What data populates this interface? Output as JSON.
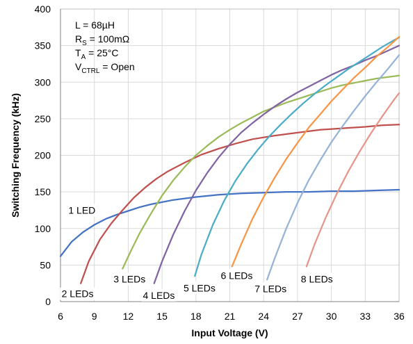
{
  "chart_data": {
    "type": "line",
    "title": "",
    "xlabel": "Input Voltage (V)",
    "ylabel": "Switching Frequency (kHz)",
    "xlim": [
      6,
      36
    ],
    "ylim": [
      0,
      400
    ],
    "xticks": [
      6,
      9,
      12,
      15,
      18,
      21,
      24,
      27,
      30,
      33,
      36
    ],
    "yticks": [
      0,
      50,
      100,
      150,
      200,
      250,
      300,
      350,
      400
    ],
    "grid": true,
    "legend": "none",
    "annotations": [
      {
        "main": "L = 68µH",
        "sub": "",
        "tail": ""
      },
      {
        "main": "R",
        "sub": "S",
        "tail": " = 100mΩ"
      },
      {
        "main": "T",
        "sub": "A",
        "tail": " = 25°C"
      },
      {
        "main": "V",
        "sub": "CTRL",
        "tail": " = Open"
      }
    ],
    "series": [
      {
        "name": "1 LED",
        "color": "#4472C4",
        "x": [
          6,
          7,
          8,
          9,
          10,
          11,
          12,
          13,
          14,
          15,
          16,
          17,
          18,
          20,
          22,
          24,
          26,
          28,
          30,
          32,
          34,
          36
        ],
        "y": [
          62,
          82,
          95,
          105,
          113,
          119,
          124,
          129,
          133,
          136,
          139,
          141,
          143,
          146,
          148,
          149,
          150,
          150,
          151,
          151,
          152,
          153
        ]
      },
      {
        "name": "2 LEDs",
        "color": "#C0504D",
        "x": [
          7.8,
          8.5,
          9.5,
          10.5,
          11.5,
          12.5,
          13.5,
          14.5,
          15.5,
          17,
          18.5,
          20,
          21.5,
          23,
          25,
          27,
          29,
          31,
          33,
          34.5,
          36
        ],
        "y": [
          25,
          55,
          85,
          107,
          125,
          142,
          156,
          168,
          178,
          190,
          201,
          209,
          216,
          222,
          227,
          231,
          235,
          237,
          239,
          241,
          242
        ]
      },
      {
        "name": "3 LEDs",
        "color": "#9BBB59",
        "x": [
          11.5,
          12.2,
          13,
          14,
          15,
          16,
          17,
          18,
          19,
          20,
          21,
          22,
          23,
          24,
          25,
          26,
          27,
          28,
          29,
          30,
          31,
          32,
          33,
          34,
          35,
          36
        ],
        "y": [
          45,
          68,
          93,
          120,
          145,
          166,
          184,
          200,
          213,
          225,
          235,
          244,
          252,
          260,
          266,
          272,
          277,
          282,
          287,
          292,
          296,
          299,
          302,
          305,
          307,
          309
        ]
      },
      {
        "name": "4 LEDs",
        "color": "#8064A2",
        "x": [
          14.3,
          15,
          16,
          17,
          18,
          19,
          20,
          21,
          22,
          23,
          24,
          25,
          26,
          27,
          28,
          29,
          30,
          31,
          32,
          33,
          34,
          35,
          36
        ],
        "y": [
          25,
          55,
          92,
          124,
          152,
          176,
          197,
          215,
          231,
          244,
          256,
          267,
          277,
          286,
          294,
          302,
          310,
          317,
          323,
          330,
          336,
          343,
          350
        ]
      },
      {
        "name": "5 LEDs",
        "color": "#4BACC6",
        "x": [
          17.9,
          18.5,
          19.5,
          20.5,
          21.5,
          22.5,
          23.5,
          24.5,
          25.5,
          26.5,
          27.5,
          28.5,
          29.5,
          30.5,
          31.5,
          32.5,
          33.5,
          34.5,
          35.5,
          36
        ],
        "y": [
          35,
          65,
          105,
          138,
          165,
          188,
          208,
          226,
          242,
          257,
          271,
          284,
          296,
          307,
          318,
          328,
          338,
          348,
          357,
          361
        ]
      },
      {
        "name": "6 LEDs",
        "color": "#F79646",
        "x": [
          21.2,
          22,
          23,
          24,
          25,
          26,
          27,
          28,
          29,
          30,
          31,
          32,
          33,
          34,
          35,
          36
        ],
        "y": [
          48,
          78,
          113,
          143,
          170,
          195,
          217,
          238,
          256,
          274,
          290,
          306,
          320,
          335,
          348,
          362
        ]
      },
      {
        "name": "7 LEDs",
        "color": "#95B3D7",
        "x": [
          24.3,
          25,
          26,
          27,
          28,
          29,
          30,
          31,
          32,
          33,
          34,
          35,
          36
        ],
        "y": [
          30,
          60,
          100,
          135,
          166,
          193,
          218,
          240,
          261,
          281,
          300,
          318,
          337
        ]
      },
      {
        "name": "8 LEDs",
        "color": "#E6958A",
        "x": [
          27.8,
          28.5,
          29.5,
          30.5,
          31.5,
          32.5,
          33.5,
          34.5,
          35.5,
          36
        ],
        "y": [
          48,
          78,
          115,
          148,
          178,
          205,
          230,
          253,
          275,
          285
        ]
      }
    ],
    "series_labels": [
      {
        "text": "1 LED",
        "x": 6.7,
        "y": 120
      },
      {
        "text": "2 LEDs",
        "x": 6.1,
        "y": 6
      },
      {
        "text": "3 LEDs",
        "x": 10.7,
        "y": 26
      },
      {
        "text": "4 LEDs",
        "x": 13.3,
        "y": 4
      },
      {
        "text": "5 LEDs",
        "x": 16.9,
        "y": 14
      },
      {
        "text": "6 LEDs",
        "x": 20.2,
        "y": 31
      },
      {
        "text": "7 LEDs",
        "x": 23.2,
        "y": 13
      },
      {
        "text": "8 LEDs",
        "x": 27.3,
        "y": 26
      }
    ]
  }
}
